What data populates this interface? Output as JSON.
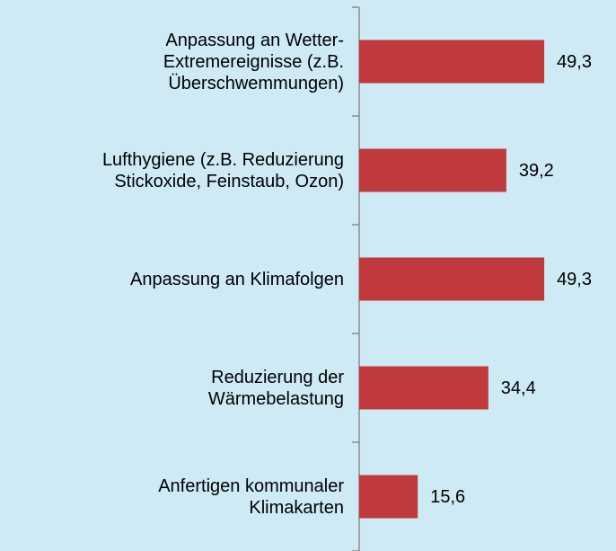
{
  "chart_data": {
    "type": "barh",
    "categories": [
      "Anpassung an Wetter-\nExtremereignisse (z.B.\nÜberschwemmungen)",
      "Lufthygiene (z.B. Reduzierung\nStickoxide, Feinstaub, Ozon)",
      "Anpassung an Klimafolgen",
      "Reduzierung der\nWärmebelastung",
      "Anfertigen kommunaler\nKlimakarten"
    ],
    "values": [
      49.3,
      39.2,
      49.3,
      34.4,
      15.6
    ],
    "value_labels": [
      "49,3",
      "39,2",
      "49,3",
      "34,4",
      "15,6"
    ],
    "color": "#c0393c"
  }
}
